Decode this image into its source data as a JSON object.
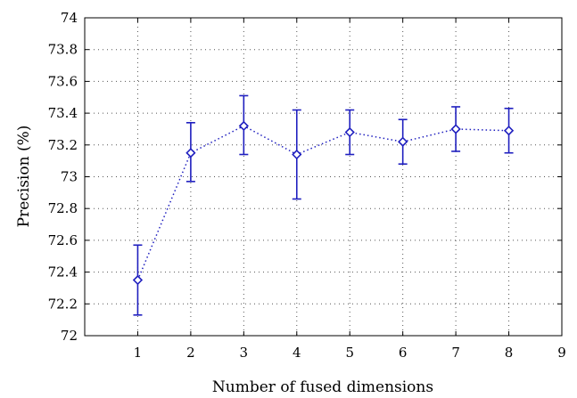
{
  "chart_data": {
    "type": "line",
    "title": "",
    "xlabel": "Number of fused dimensions",
    "ylabel": "Precision (%)",
    "xlim": [
      0,
      9
    ],
    "ylim": [
      72,
      74
    ],
    "xticks": [
      1,
      2,
      3,
      4,
      5,
      6,
      7,
      8,
      9
    ],
    "xtick_labels": [
      "1",
      "2",
      "3",
      "4",
      "5",
      "6",
      "7",
      "8",
      "9"
    ],
    "yticks": [
      72,
      72.2,
      72.4,
      72.6,
      72.8,
      73,
      73.2,
      73.4,
      73.6,
      73.8,
      74
    ],
    "ytick_labels": [
      "72",
      "72.2",
      "72.4",
      "72.6",
      "72.8",
      "73",
      "73.2",
      "73.4",
      "73.6",
      "73.8",
      "74"
    ],
    "grid": true,
    "line_style": "dotted",
    "marker": "diamond",
    "color": "#1f1fbf",
    "series": [
      {
        "x": [
          1,
          2,
          3,
          4,
          5,
          6,
          7,
          8
        ],
        "y": [
          72.35,
          73.15,
          73.32,
          73.14,
          73.28,
          73.22,
          73.3,
          73.29
        ],
        "error_low": [
          72.13,
          72.97,
          73.14,
          72.86,
          73.14,
          73.08,
          73.16,
          73.15
        ],
        "error_high": [
          72.57,
          73.34,
          73.51,
          73.42,
          73.42,
          73.36,
          73.44,
          73.43
        ]
      }
    ]
  }
}
